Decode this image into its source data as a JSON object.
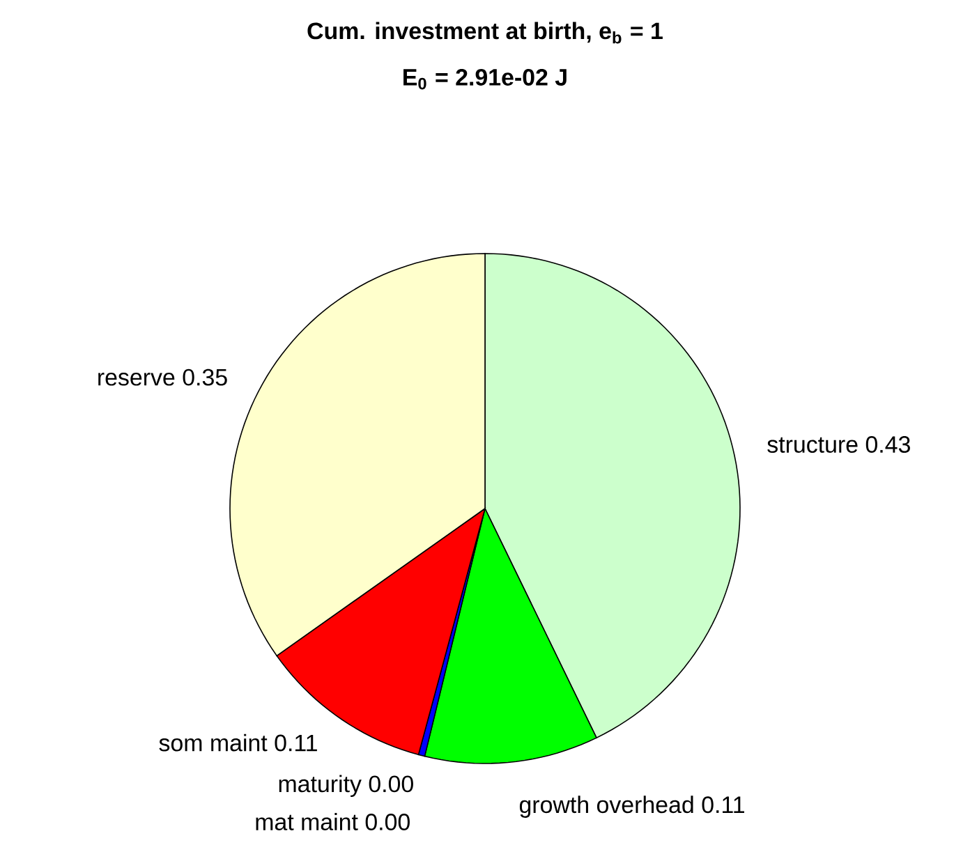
{
  "chart_data": {
    "type": "pie",
    "title": "Cum. investment at birth, e$_{b}$ = 1",
    "subtitle": "E$_{0}$ = 2.91e-02 J",
    "categories": [
      "structure",
      "growth overhead",
      "maturity",
      "mat maint",
      "som maint",
      "reserve"
    ],
    "values": [
      0.428,
      0.11,
      0,
      0.004,
      0.11,
      0.348
    ],
    "value_labels": [
      "0.43",
      "0.11",
      "0.00",
      "0.00",
      "0.11",
      "0.35"
    ],
    "colors": [
      "#ccffcc",
      "#00ff00",
      "#00ffff",
      "#0000ff",
      "#ff0000",
      "#ffffcc"
    ]
  }
}
